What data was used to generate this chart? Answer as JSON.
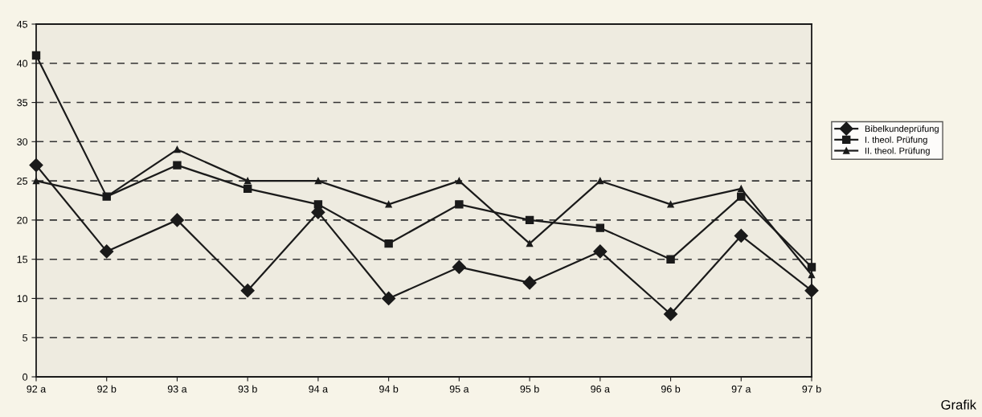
{
  "chart_data": {
    "type": "line",
    "categories": [
      "92 a",
      "92 b",
      "93 a",
      "93 b",
      "94 a",
      "94 b",
      "95 a",
      "95 b",
      "96 a",
      "96 b",
      "97 a",
      "97 b"
    ],
    "series": [
      {
        "name": "Bibelkundeprüfung",
        "color": "#1a1a1a",
        "marker": "diamond",
        "values": [
          27,
          16,
          20,
          11,
          21,
          10,
          14,
          12,
          16,
          8,
          18,
          11
        ]
      },
      {
        "name": "I. theol. Prüfung",
        "color": "#1a1a1a",
        "marker": "square",
        "values": [
          41,
          23,
          27,
          24,
          22,
          17,
          22,
          20,
          19,
          15,
          23,
          14
        ]
      },
      {
        "name": "II. theol. Prüfung",
        "color": "#1a1a1a",
        "marker": "triangle",
        "values": [
          25,
          23,
          29,
          25,
          25,
          22,
          25,
          17,
          25,
          22,
          24,
          13
        ]
      }
    ],
    "ylim": [
      0,
      45
    ],
    "yticks": [
      0,
      5,
      10,
      15,
      20,
      25,
      30,
      35,
      40,
      45
    ],
    "grid": "y",
    "legend": "right",
    "line_style": "solid",
    "annotations": [
      "Grafik"
    ]
  }
}
